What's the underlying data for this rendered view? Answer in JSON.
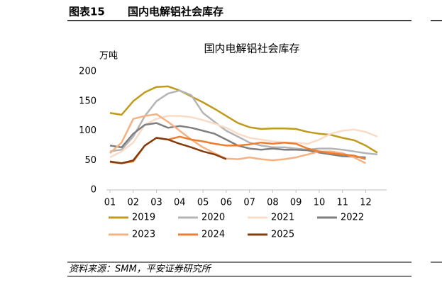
{
  "header": {
    "label": "图表15",
    "title": "国内电解铝社会库存"
  },
  "chart_data": {
    "type": "line",
    "title": "国内电解铝社会库存",
    "y_label": "万吨",
    "x": [
      1,
      1.5,
      2,
      2.5,
      3,
      3.5,
      4,
      4.5,
      5,
      5.5,
      6,
      6.5,
      7,
      7.5,
      8,
      8.5,
      9,
      9.5,
      10,
      10.5,
      11,
      11.5,
      12,
      12.5
    ],
    "xlim": [
      1,
      12.9
    ],
    "xticks": [
      {
        "value": 1,
        "label": "01"
      },
      {
        "value": 2,
        "label": "02"
      },
      {
        "value": 3,
        "label": "03"
      },
      {
        "value": 4,
        "label": "04"
      },
      {
        "value": 5,
        "label": "05"
      },
      {
        "value": 6,
        "label": "06"
      },
      {
        "value": 7,
        "label": "07"
      },
      {
        "value": 8,
        "label": "08"
      },
      {
        "value": 9,
        "label": "09"
      },
      {
        "value": 10,
        "label": "10"
      },
      {
        "value": 11,
        "label": "11"
      },
      {
        "value": 12,
        "label": "12"
      }
    ],
    "ylim": [
      0,
      200
    ],
    "yticks": [
      0,
      50,
      100,
      150,
      200
    ],
    "series": [
      {
        "name": "2019",
        "color": "#c09a1a",
        "values": [
          130,
          127,
          150,
          165,
          174,
          175,
          168,
          158,
          148,
          137,
          125,
          113,
          106,
          103,
          104,
          104,
          103,
          98,
          95,
          93,
          88,
          84,
          75,
          63
        ]
      },
      {
        "name": "2020",
        "color": "#b4b4b4",
        "values": [
          65,
          68,
          90,
          125,
          150,
          163,
          168,
          160,
          130,
          115,
          100,
          90,
          80,
          75,
          72,
          72,
          70,
          68,
          70,
          70,
          68,
          65,
          62,
          60
        ]
      },
      {
        "name": "2021",
        "color": "#f9dcc8",
        "values": [
          55,
          65,
          80,
          110,
          120,
          125,
          125,
          123,
          118,
          112,
          105,
          95,
          88,
          85,
          82,
          80,
          80,
          78,
          85,
          95,
          100,
          102,
          98,
          90
        ]
      },
      {
        "name": "2022",
        "color": "#7f7f7f",
        "values": [
          75,
          72,
          95,
          110,
          113,
          105,
          108,
          105,
          100,
          95,
          85,
          75,
          70,
          68,
          70,
          68,
          68,
          67,
          63,
          60,
          57,
          56,
          55,
          null
        ]
      },
      {
        "name": "2023",
        "color": "#f4b183",
        "values": [
          62,
          80,
          120,
          125,
          128,
          115,
          100,
          85,
          72,
          62,
          53,
          52,
          55,
          52,
          50,
          52,
          55,
          60,
          65,
          65,
          62,
          55,
          45,
          null
        ]
      },
      {
        "name": "2024",
        "color": "#ed7d31",
        "values": [
          47,
          45,
          48,
          75,
          88,
          85,
          90,
          85,
          82,
          78,
          75,
          75,
          77,
          80,
          78,
          80,
          78,
          70,
          65,
          62,
          60,
          58,
          52,
          null
        ]
      },
      {
        "name": "2025",
        "color": "#843c0c",
        "values": [
          48,
          45,
          50,
          75,
          88,
          85,
          78,
          72,
          65,
          60,
          52,
          null,
          null,
          null,
          null,
          null,
          null,
          null,
          null,
          null,
          null,
          null,
          null,
          null
        ]
      }
    ]
  },
  "source": "资料来源：SMM，平安证券研究所"
}
